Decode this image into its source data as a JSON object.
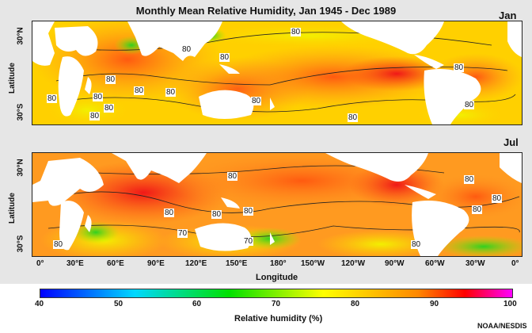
{
  "title": "Monthly Mean Relative Humidity, Jan 1945 - Dec 1989",
  "colors": {
    "background": "#e6e6e6",
    "land": "#ffffff",
    "cb_low": "#0000ff",
    "cb_high": "#ff00ff"
  },
  "panels": [
    {
      "month": "Jan",
      "ylabel": "Latitude",
      "lat_ticks": [
        "30°N",
        "30°S"
      ],
      "contour_labels": [
        "80",
        "80",
        "80",
        "80",
        "80",
        "80",
        "80",
        "80",
        "80",
        "80",
        "80",
        "80",
        "80",
        "80"
      ]
    },
    {
      "month": "Jul",
      "ylabel": "Latitude",
      "lat_ticks": [
        "30°N",
        "30°S"
      ],
      "contour_labels": [
        "80",
        "80",
        "80",
        "80",
        "80",
        "80",
        "80",
        "80",
        "70",
        "70",
        "80"
      ]
    }
  ],
  "x_ticks": [
    "0°",
    "30°E",
    "60°E",
    "90°E",
    "120°E",
    "150°E",
    "180°",
    "150°W",
    "120°W",
    "90°W",
    "60°W",
    "30°W",
    "0°"
  ],
  "xlabel": "Longitude",
  "colorbar": {
    "ticks": [
      "40",
      "50",
      "60",
      "70",
      "80",
      "90",
      "100"
    ],
    "label": "Relative humidity (%)"
  },
  "credit": "NOAA/NESDIS"
}
